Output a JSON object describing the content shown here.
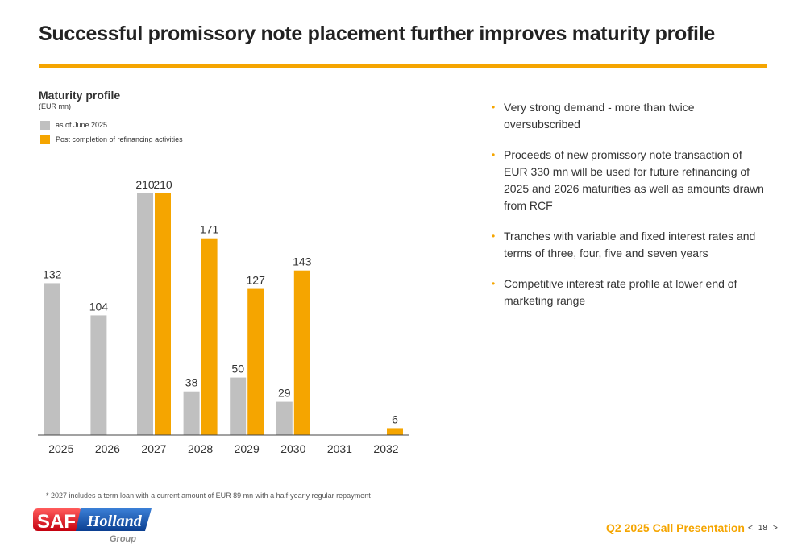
{
  "slide": {
    "title": "Successful promissory note placement further improves maturity profile",
    "accent_color": "#f5a500"
  },
  "chart_header": {
    "title": "Maturity profile",
    "unit": "(EUR mn)"
  },
  "legend": [
    {
      "label": "as of June 2025",
      "color": "#c0c0c0"
    },
    {
      "label": "Post completion of refinancing activities",
      "color": "#f5a500"
    }
  ],
  "chart_data": {
    "type": "bar",
    "title": "Maturity profile",
    "ylabel": "(EUR mn)",
    "xlabel": "",
    "categories": [
      "2025",
      "2026",
      "2027",
      "2028",
      "2029",
      "2030",
      "2031",
      "2032"
    ],
    "series": [
      {
        "name": "as of June 2025",
        "color": "#c0c0c0",
        "values": [
          132,
          104,
          210,
          38,
          50,
          29,
          null,
          null
        ]
      },
      {
        "name": "Post completion of refinancing activities",
        "color": "#f5a500",
        "values": [
          null,
          null,
          210,
          171,
          127,
          143,
          null,
          6
        ]
      }
    ],
    "ylim": [
      0,
      210
    ],
    "grid": false,
    "legend_position": "top-left"
  },
  "bullets": [
    "Very strong demand - more than twice oversubscribed",
    "Proceeds of new promissory note transaction of EUR 330 mn will be used for future refinancing of 2025 and 2026 maturities as well as amounts drawn from RCF",
    "Tranches with variable and fixed interest rates and terms of three, four, five and seven years",
    "Competitive interest rate profile at lower end of marketing range"
  ],
  "footnote": "* 2027 includes a term loan with a current amount of EUR 89 mn with a half-yearly regular repayment",
  "logo": {
    "text_main": "SAF",
    "text_script": "Holland",
    "text_sub": "Group"
  },
  "footer": {
    "presentation_title": "Q2 2025 Call Presentation",
    "page_prev": "<",
    "page_number": "18",
    "page_next": ">"
  }
}
